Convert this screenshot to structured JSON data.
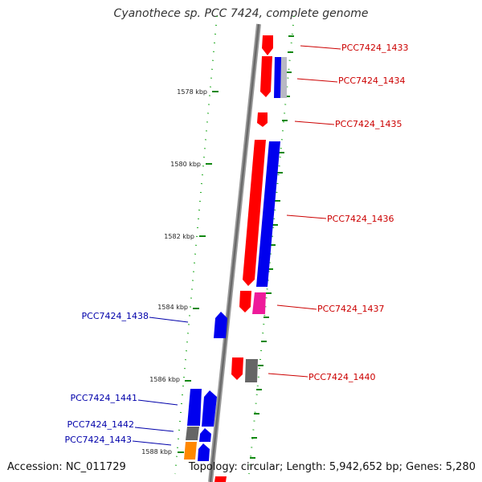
{
  "header": {
    "title": "Cyanothece sp. PCC 7424, complete genome"
  },
  "footer": {
    "accession": "Accession: NC_011729",
    "summary": "Topology: circular; Length: 5,942,652 bp; Genes: 5,280"
  },
  "scale_ticks": [
    "1578 kbp",
    "1580 kbp",
    "1582 kbp",
    "1584 kbp",
    "1586 kbp",
    "1588 kbp"
  ],
  "gene_labels": {
    "right": [
      "PCC7424_1433",
      "PCC7424_1434",
      "PCC7424_1435",
      "PCC7424_1436",
      "PCC7424_1437",
      "PCC7424_1440"
    ],
    "left": [
      "PCC7424_1438",
      "PCC7424_1441",
      "PCC7424_1442",
      "PCC7424_1443"
    ]
  },
  "colors": {
    "forward_label": "#cc0000",
    "reverse_label": "#0000aa",
    "red": "#ff0000",
    "blue": "#0000ee",
    "magenta": "#ee1a9a",
    "gray": "#666666",
    "orange": "#ff8800",
    "tick": "#118811"
  }
}
